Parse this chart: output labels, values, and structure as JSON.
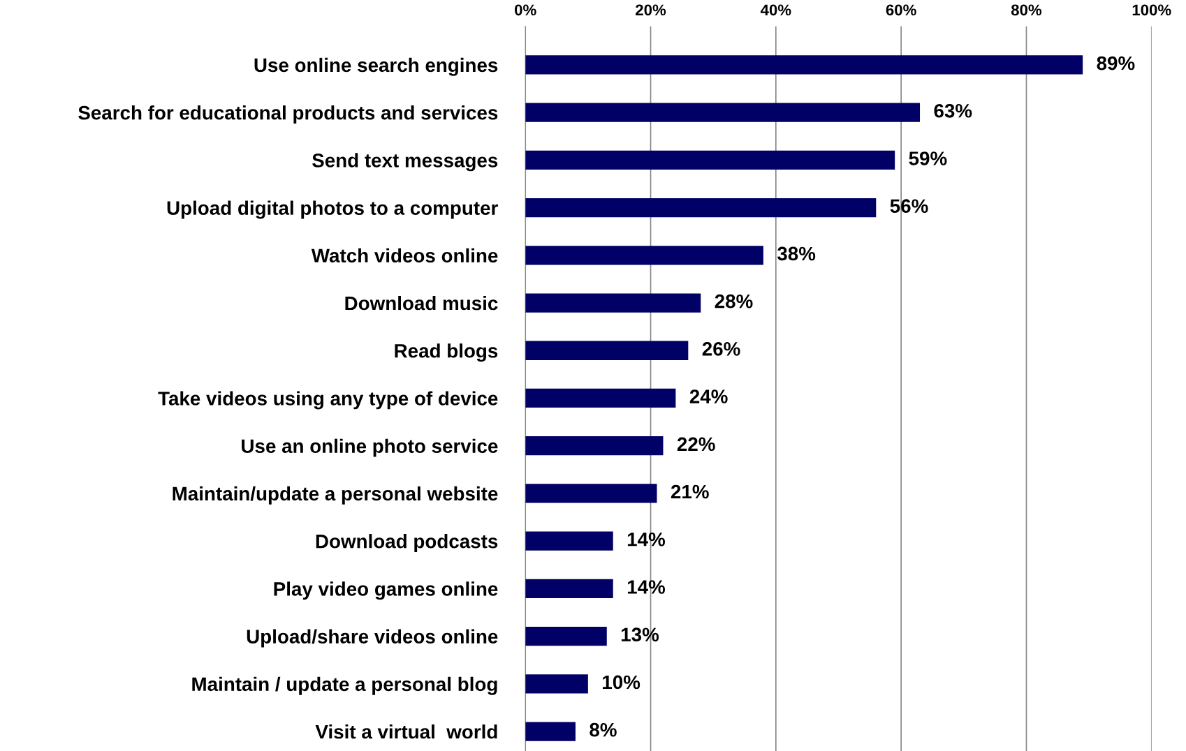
{
  "chart_data": {
    "type": "bar",
    "orientation": "horizontal",
    "categories": [
      "Use online search engines",
      "Search for educational products and services",
      "Send text messages",
      "Upload digital photos to a computer",
      "Watch videos online",
      "Download music",
      "Read blogs",
      "Take videos using any type of device",
      "Use an online photo service",
      "Maintain/update a personal website",
      "Download podcasts",
      "Play video games online",
      "Upload/share videos online",
      "Maintain / update a personal blog",
      "Visit a virtual  world"
    ],
    "values": [
      89,
      63,
      59,
      56,
      38,
      28,
      26,
      24,
      22,
      21,
      14,
      14,
      13,
      10,
      8
    ],
    "value_labels": [
      "89%",
      "63%",
      "59%",
      "56%",
      "38%",
      "28%",
      "26%",
      "24%",
      "22%",
      "21%",
      "14%",
      "14%",
      "13%",
      "10%",
      "8%"
    ],
    "color": "#000066",
    "xlim": [
      0,
      100
    ],
    "xticks": [
      {
        "value": 0,
        "label": "0%"
      },
      {
        "value": 20,
        "label": "20%"
      },
      {
        "value": 40,
        "label": "40%"
      },
      {
        "value": 60,
        "label": "60%"
      },
      {
        "value": 80,
        "label": "80%"
      },
      {
        "value": 100,
        "label": "100%"
      }
    ],
    "grid": "x",
    "legend": false
  }
}
